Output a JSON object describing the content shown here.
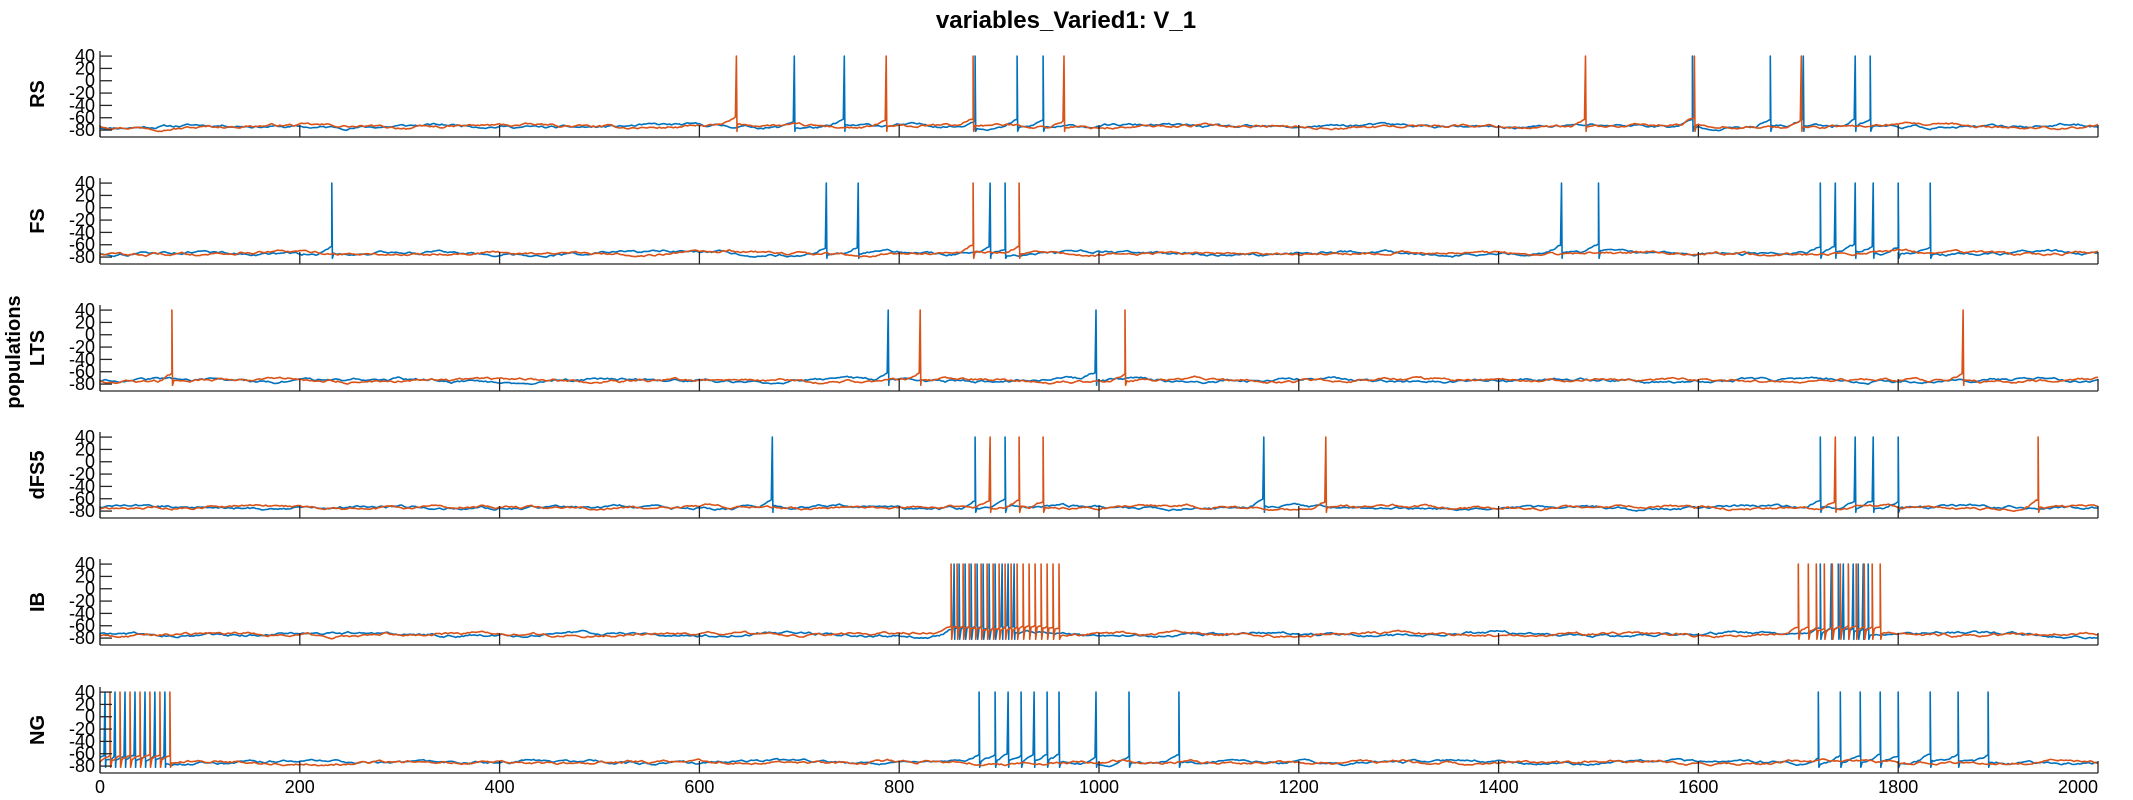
{
  "chart_data": {
    "type": "line",
    "title": "variables_Varied1: V_1",
    "ylabel": "populations",
    "xlim": [
      0,
      2000
    ],
    "x_ticks": [
      "0",
      "200",
      "400",
      "600",
      "800",
      "1000",
      "1200",
      "1400",
      "1600",
      "1800",
      "2000"
    ],
    "x_tick_values": [
      0,
      200,
      400,
      600,
      800,
      1000,
      1200,
      1400,
      1600,
      1800,
      2000
    ],
    "y_ticks": [
      "40",
      "20",
      "0",
      "-20",
      "-40",
      "-60",
      "-80"
    ],
    "y_tick_values": [
      40,
      20,
      0,
      -20,
      -40,
      -60,
      -80
    ],
    "ylim": [
      -88,
      45
    ],
    "grid": false,
    "series_colors": [
      "#0072BD",
      "#D95319"
    ],
    "series": [
      {
        "name": "",
        "color": "#0072BD"
      },
      {
        "name": "",
        "color": "#D95319"
      }
    ],
    "panels": [
      {
        "name": "RS",
        "spikes_blue": [
          695,
          745,
          876,
          918,
          944,
          1594,
          1672,
          1705,
          1757,
          1772
        ],
        "spikes_orange": [
          637,
          787,
          874,
          965,
          1487,
          1596,
          1703
        ]
      },
      {
        "name": "FS",
        "spikes_blue": [
          232,
          727,
          759,
          891,
          906,
          1463,
          1500,
          1722,
          1737,
          1757,
          1775,
          1800,
          1832
        ],
        "spikes_orange": [
          874,
          920
        ]
      },
      {
        "name": "LTS",
        "spikes_blue": [
          789,
          997
        ],
        "spikes_orange": [
          72,
          821,
          1026,
          1865
        ]
      },
      {
        "name": "dFS5",
        "spikes_blue": [
          673,
          876,
          906,
          1165,
          1722,
          1757,
          1775,
          1800
        ],
        "spikes_orange": [
          891,
          920,
          944,
          1227,
          1737,
          1940
        ]
      },
      {
        "name": "IB",
        "spikes_blue": [
          855,
          860,
          866,
          872,
          878,
          884,
          890,
          896,
          903,
          909,
          915,
          1722,
          1733,
          1740,
          1745,
          1750,
          1755,
          1760,
          1765,
          1770
        ],
        "spikes_orange": [
          852,
          858,
          864,
          870,
          876,
          882,
          888,
          894,
          900,
          906,
          912,
          918,
          924,
          930,
          936,
          942,
          948,
          954,
          960,
          1700,
          1710,
          1718,
          1726,
          1734,
          1742,
          1750,
          1758,
          1766,
          1774,
          1782
        ]
      },
      {
        "name": "NG",
        "spikes_blue": [
          5,
          15,
          25,
          35,
          45,
          55,
          65,
          880,
          896,
          909,
          922,
          935,
          948,
          960,
          997,
          1030,
          1080,
          1720,
          1742,
          1762,
          1782,
          1800,
          1832,
          1860,
          1890
        ],
        "spikes_orange": [
          10,
          20,
          30,
          40,
          50,
          60,
          70
        ]
      }
    ]
  }
}
